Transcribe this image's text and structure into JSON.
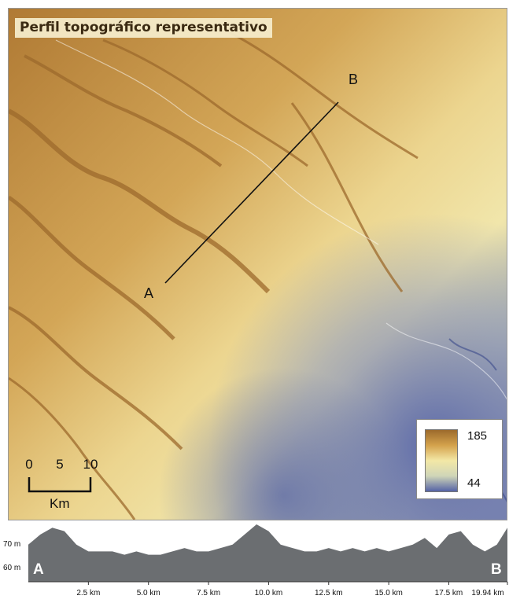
{
  "map": {
    "title": "Perfil topográfico representativo",
    "point_a": "A",
    "point_b": "B",
    "scale_bar": {
      "labels": [
        "0",
        "5",
        "10"
      ],
      "unit": "Km"
    },
    "legend": {
      "max": "185",
      "min": "44",
      "colors": [
        "#9c6a2c",
        "#d4a24c",
        "#f3e8a6",
        "#cfd5b8",
        "#5563a6"
      ]
    },
    "colors": {
      "highland": "#b07a34",
      "midland": "#e8cc82",
      "lowland": "#5a67a8"
    }
  },
  "chart_data": {
    "type": "area",
    "title": "",
    "xlabel": "",
    "ylabel": "",
    "y_ticks": [
      "70 m",
      "60 m"
    ],
    "x_ticks": [
      "2.5 km",
      "5.0 km",
      "7.5 km",
      "10.0 km",
      "12.5 km",
      "15.0 km",
      "17.5 km",
      "19.94 km"
    ],
    "x_tick_values": [
      2.5,
      5.0,
      7.5,
      10.0,
      12.5,
      15.0,
      17.5,
      19.94
    ],
    "start_label": "A",
    "end_label": "B",
    "xlim": [
      0,
      19.94
    ],
    "ylim": [
      55,
      72
    ],
    "fill_color": "#6b6e71",
    "x": [
      0,
      0.5,
      1.0,
      1.5,
      2.0,
      2.5,
      3.0,
      3.5,
      4.0,
      4.5,
      5.0,
      5.5,
      6.0,
      6.5,
      7.0,
      7.5,
      8.0,
      8.5,
      9.0,
      9.5,
      10.0,
      10.5,
      11.0,
      11.5,
      12.0,
      12.5,
      13.0,
      13.5,
      14.0,
      14.5,
      15.0,
      15.5,
      16.0,
      16.5,
      17.0,
      17.5,
      18.0,
      18.5,
      19.0,
      19.5,
      19.94
    ],
    "y": [
      66,
      69,
      71,
      70,
      66,
      64,
      64,
      64,
      63,
      64,
      63,
      63,
      64,
      65,
      64,
      64,
      65,
      66,
      69,
      72,
      70,
      66,
      65,
      64,
      64,
      65,
      64,
      65,
      64,
      65,
      64,
      65,
      66,
      68,
      65,
      69,
      70,
      66,
      64,
      66,
      71
    ]
  }
}
